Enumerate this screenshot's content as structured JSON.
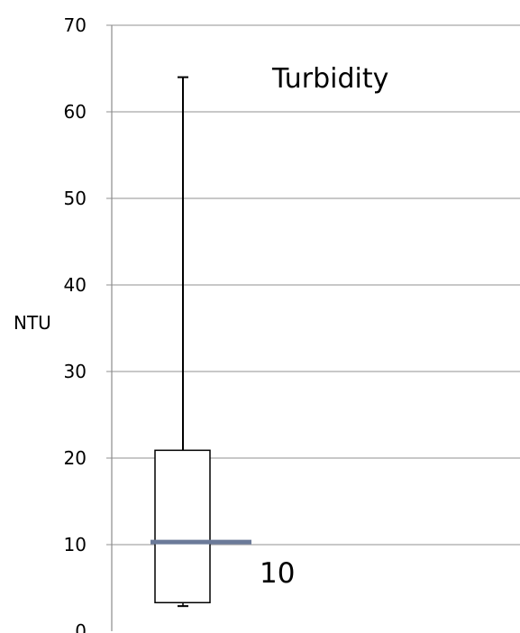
{
  "chart_data": {
    "type": "box",
    "title": "Turbidity",
    "ylabel": "NTU",
    "xlabel": "",
    "ylim": [
      0,
      70
    ],
    "yticks": [
      0,
      10,
      20,
      30,
      40,
      50,
      60,
      70
    ],
    "grid": true,
    "series": [
      {
        "min": 2.9,
        "q1": 3.3,
        "median": 10.3,
        "q3": 20.9,
        "max": 64
      }
    ],
    "reference": {
      "value": 10,
      "label": "10",
      "color": "#6b7a99"
    },
    "colors": {
      "grid": "#a6a6a6",
      "axis": "#8c8c8c",
      "box_stroke": "#000000"
    }
  }
}
